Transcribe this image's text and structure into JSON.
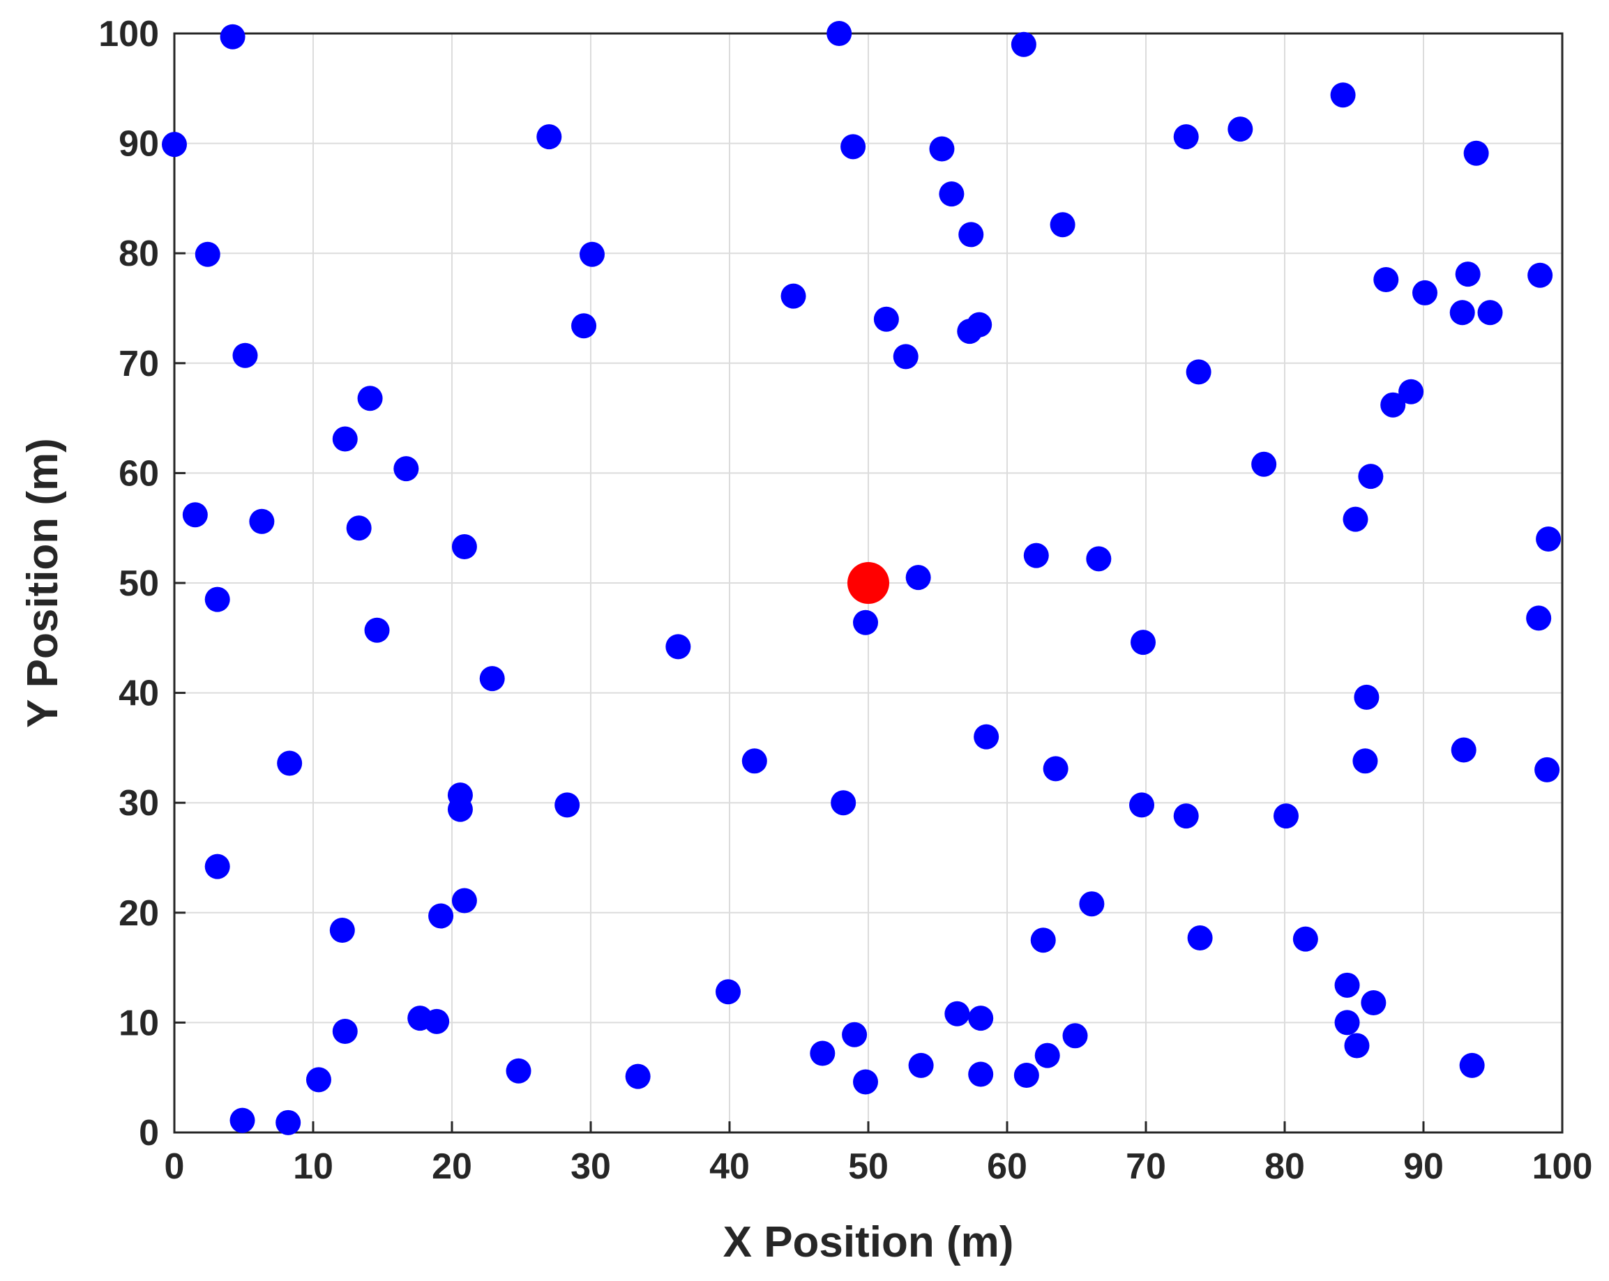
{
  "chart_data": {
    "type": "scatter",
    "xlabel": "X Position (m)",
    "ylabel": "Y Position (m)",
    "xlim": [
      0,
      100
    ],
    "ylim": [
      0,
      100
    ],
    "xticks": [
      0,
      10,
      20,
      30,
      40,
      50,
      60,
      70,
      80,
      90,
      100
    ],
    "yticks": [
      0,
      10,
      20,
      30,
      40,
      50,
      60,
      70,
      80,
      90,
      100
    ],
    "grid": true,
    "series": [
      {
        "color": "#0000ff",
        "points": [
          [
            4.2,
            99.7
          ],
          [
            47.9,
            100
          ],
          [
            61.2,
            99
          ],
          [
            0,
            89.9
          ],
          [
            27,
            90.6
          ],
          [
            48.9,
            89.7
          ],
          [
            55.3,
            89.5
          ],
          [
            72.9,
            90.6
          ],
          [
            76.8,
            91.3
          ],
          [
            84.2,
            94.4
          ],
          [
            93.8,
            89.1
          ],
          [
            56,
            85.4
          ],
          [
            57.4,
            81.7
          ],
          [
            64,
            82.6
          ],
          [
            2.4,
            79.9
          ],
          [
            30.1,
            79.9
          ],
          [
            44.6,
            76.1
          ],
          [
            51.3,
            74
          ],
          [
            57.3,
            72.9
          ],
          [
            58,
            73.5
          ],
          [
            29.5,
            73.4
          ],
          [
            87.3,
            77.6
          ],
          [
            90.1,
            76.4
          ],
          [
            93.2,
            78.1
          ],
          [
            98.4,
            78
          ],
          [
            92.8,
            74.6
          ],
          [
            94.8,
            74.6
          ],
          [
            5.1,
            70.7
          ],
          [
            52.7,
            70.6
          ],
          [
            73.8,
            69.2
          ],
          [
            14.1,
            66.8
          ],
          [
            89.1,
            67.4
          ],
          [
            87.8,
            66.2
          ],
          [
            12.3,
            63.1
          ],
          [
            16.7,
            60.4
          ],
          [
            78.5,
            60.8
          ],
          [
            86.2,
            59.7
          ],
          [
            1.5,
            56.2
          ],
          [
            6.3,
            55.6
          ],
          [
            13.3,
            55
          ],
          [
            20.9,
            53.3
          ],
          [
            85.1,
            55.8
          ],
          [
            99,
            54
          ],
          [
            62.1,
            52.5
          ],
          [
            66.6,
            52.2
          ],
          [
            53.6,
            50.5
          ],
          [
            3.1,
            48.5
          ],
          [
            49.8,
            46.4
          ],
          [
            98.3,
            46.8
          ],
          [
            14.6,
            45.7
          ],
          [
            36.3,
            44.2
          ],
          [
            69.8,
            44.6
          ],
          [
            22.9,
            41.3
          ],
          [
            85.9,
            39.6
          ],
          [
            58.5,
            36
          ],
          [
            8.3,
            33.6
          ],
          [
            41.8,
            33.8
          ],
          [
            63.5,
            33.1
          ],
          [
            85.8,
            33.8
          ],
          [
            92.9,
            34.8
          ],
          [
            98.9,
            33
          ],
          [
            20.6,
            30.7
          ],
          [
            20.6,
            29.4
          ],
          [
            28.3,
            29.8
          ],
          [
            48.2,
            30
          ],
          [
            69.7,
            29.8
          ],
          [
            72.9,
            28.8
          ],
          [
            80.1,
            28.8
          ],
          [
            3.1,
            24.2
          ],
          [
            20.9,
            21.1
          ],
          [
            19.2,
            19.7
          ],
          [
            66.1,
            20.8
          ],
          [
            12.1,
            18.4
          ],
          [
            62.6,
            17.5
          ],
          [
            73.9,
            17.7
          ],
          [
            81.5,
            17.6
          ],
          [
            39.9,
            12.8
          ],
          [
            84.5,
            13.4
          ],
          [
            86.4,
            11.8
          ],
          [
            56.4,
            10.8
          ],
          [
            58.1,
            10.4
          ],
          [
            17.7,
            10.4
          ],
          [
            18.9,
            10.1
          ],
          [
            12.3,
            9.2
          ],
          [
            84.5,
            10
          ],
          [
            85.2,
            7.9
          ],
          [
            49,
            8.9
          ],
          [
            64.9,
            8.8
          ],
          [
            46.7,
            7.2
          ],
          [
            62.9,
            7
          ],
          [
            53.8,
            6.1
          ],
          [
            93.5,
            6.1
          ],
          [
            10.4,
            4.8
          ],
          [
            24.8,
            5.6
          ],
          [
            33.4,
            5.1
          ],
          [
            49.8,
            4.6
          ],
          [
            58.1,
            5.3
          ],
          [
            61.4,
            5.2
          ],
          [
            4.9,
            1.1
          ],
          [
            8.2,
            0.9
          ]
        ]
      },
      {
        "color": "#ff0000",
        "points": [
          [
            50,
            50
          ]
        ]
      }
    ]
  }
}
